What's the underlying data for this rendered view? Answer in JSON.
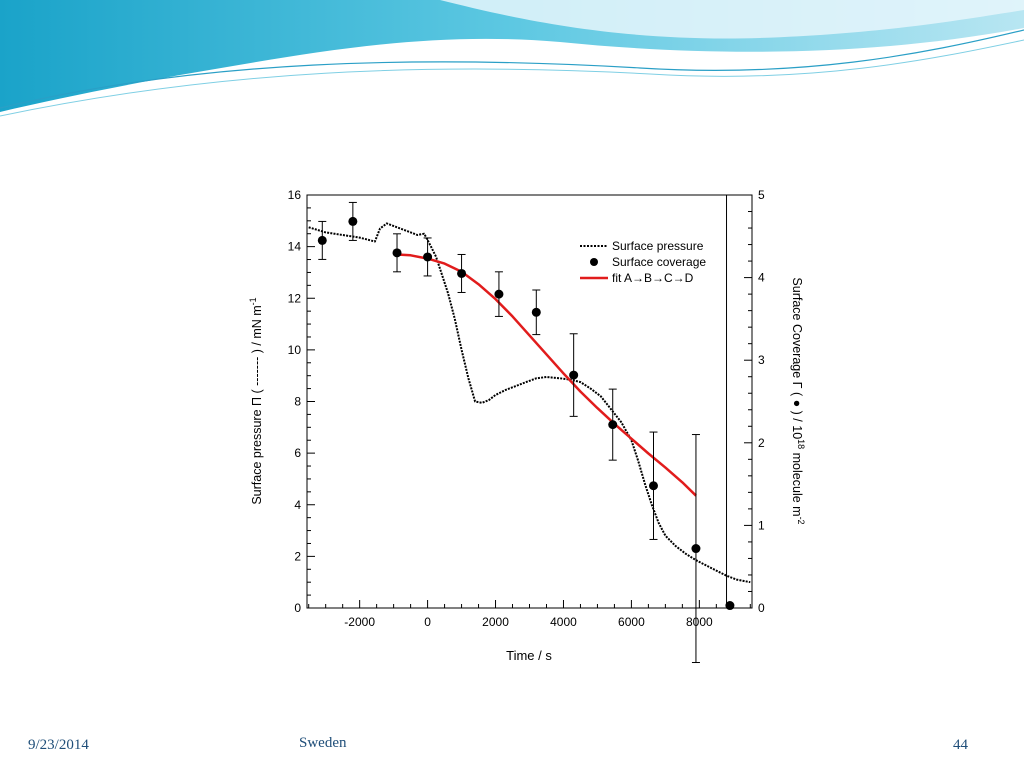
{
  "footer": {
    "date": "9/23/2014",
    "place": "Sweden",
    "page": "44"
  },
  "colors": {
    "pressure": "#000000",
    "coverage": "#000000",
    "fit": "#e11c1c",
    "footer_text": "#1f4e79",
    "header_wave": "#5bc0de"
  },
  "chart_data": {
    "type": "line",
    "xlabel": "Time / s",
    "ylabel_left": "Surface pressure Π ( ------- ) / mN m",
    "ylabel_left_sup": "-1",
    "ylabel_right": "Surface Coverage Γ ( ● ) / 10",
    "ylabel_right_sup1": "18",
    "ylabel_right_mid": " molecule m",
    "ylabel_right_sup2": "-2",
    "xlim": [
      -3550,
      9550
    ],
    "ylim_left": [
      0,
      16
    ],
    "ylim_right": [
      0,
      5
    ],
    "xticks": [
      -2000,
      0,
      2000,
      4000,
      6000,
      8000
    ],
    "xtick_labels": [
      "-2000",
      "0",
      "2000",
      "4000",
      "6000",
      "8000"
    ],
    "yticks_left": [
      0,
      2,
      4,
      6,
      8,
      10,
      12,
      14,
      16
    ],
    "yticks_left_labels": [
      "0",
      "2",
      "4",
      "6",
      "8",
      "10",
      "12",
      "14",
      "16"
    ],
    "yticks_right": [
      0,
      1,
      2,
      3,
      4,
      5
    ],
    "yticks_right_labels": [
      "0",
      "1",
      "2",
      "3",
      "4",
      "5"
    ],
    "vertical_line_x": 8800,
    "legend_position": "top-right",
    "grid": false,
    "series": [
      {
        "name": "Surface pressure",
        "style": "dotted-line",
        "axis": "left",
        "x": [
          -3500,
          -3000,
          -2500,
          -2000,
          -1700,
          -1550,
          -1400,
          -1200,
          -900,
          -600,
          -300,
          -100,
          100,
          250,
          400,
          600,
          800,
          1000,
          1200,
          1400,
          1600,
          1800,
          2000,
          2300,
          2600,
          2900,
          3200,
          3500,
          3900,
          4200,
          4500,
          4800,
          5100,
          5400,
          5700,
          6000,
          6200,
          6400,
          6600,
          6800,
          7000,
          7300,
          7600,
          7900,
          8200,
          8500,
          8800,
          9100,
          9500
        ],
        "y": [
          14.75,
          14.55,
          14.45,
          14.35,
          14.25,
          14.2,
          14.7,
          14.9,
          14.75,
          14.6,
          14.45,
          14.5,
          14.0,
          13.6,
          13.0,
          12.2,
          11.2,
          10.0,
          8.9,
          8.0,
          7.95,
          8.05,
          8.25,
          8.45,
          8.6,
          8.75,
          8.9,
          8.95,
          8.9,
          8.85,
          8.75,
          8.5,
          8.2,
          7.7,
          7.2,
          6.5,
          5.7,
          4.8,
          4.0,
          3.3,
          2.8,
          2.4,
          2.1,
          1.85,
          1.65,
          1.45,
          1.25,
          1.1,
          1.0
        ]
      },
      {
        "name": "Surface coverage",
        "style": "markers-errorbars",
        "axis": "right",
        "x": [
          -3100,
          -2200,
          -900,
          0,
          1000,
          2100,
          3200,
          4300,
          5450,
          6650,
          7900,
          8900
        ],
        "y": [
          4.45,
          4.68,
          4.3,
          4.25,
          4.05,
          3.8,
          3.58,
          2.82,
          2.22,
          1.48,
          0.72,
          0.03
        ],
        "err": [
          0.23,
          0.23,
          0.23,
          0.23,
          0.23,
          0.27,
          0.27,
          0.5,
          0.43,
          0.65,
          1.38,
          0.0
        ]
      },
      {
        "name": "fit A→B→C→D",
        "style": "line",
        "axis": "right",
        "x": [
          -900,
          -500,
          0,
          500,
          1000,
          1500,
          2000,
          2500,
          3000,
          3500,
          4000,
          4500,
          5000,
          5500,
          6000,
          6500,
          7000,
          7500,
          7900
        ],
        "y": [
          4.28,
          4.27,
          4.23,
          4.17,
          4.07,
          3.92,
          3.74,
          3.53,
          3.3,
          3.07,
          2.84,
          2.62,
          2.42,
          2.23,
          2.05,
          1.87,
          1.7,
          1.52,
          1.36
        ]
      }
    ]
  }
}
